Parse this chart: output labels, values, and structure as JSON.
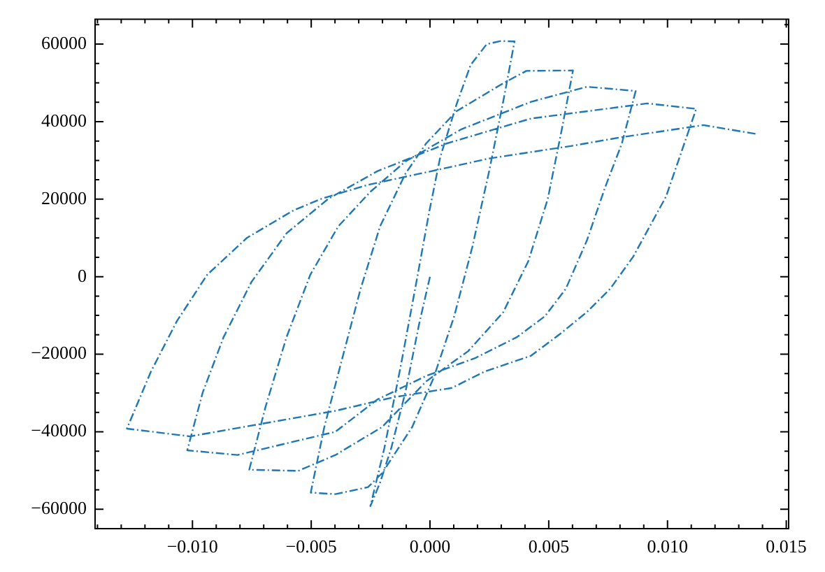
{
  "chart_data": {
    "type": "line",
    "line_style": "dashdot",
    "marker": "none",
    "grid": false,
    "legend": false,
    "x": [
      0,
      -0.00045,
      -0.00104,
      -0.00163,
      -0.0021,
      -0.00251,
      -0.00192,
      -0.00122,
      -0.00057,
      -4e-05,
      0.00043,
      0.00112,
      0.00171,
      0.00239,
      0.00298,
      0.00356,
      0.00308,
      0.00249,
      0.00178,
      0.00102,
      0.00014,
      -0.00075,
      -0.00202,
      -0.00261,
      -0.00398,
      -0.00502,
      -0.00445,
      -0.00369,
      -0.00292,
      -0.0021,
      -0.00104,
      -0.00016,
      0.00112,
      0.00308,
      0.00406,
      0.00602,
      0.00555,
      0.00496,
      0.00414,
      0.00308,
      0.00161,
      -0.00016,
      -0.00202,
      -0.00398,
      -0.00555,
      -0.00761,
      -0.00692,
      -0.00604,
      -0.00504,
      -0.00386,
      -0.00251,
      -0.00104,
      0.00131,
      0.00425,
      0.00661,
      0.00866,
      0.00808,
      0.00737,
      0.00661,
      0.00572,
      0.00484,
      0.00366,
      0.0019,
      -0.00016,
      -0.00222,
      -0.00398,
      -0.0081,
      -0.01022,
      -0.00957,
      -0.00869,
      -0.00751,
      -0.00604,
      -0.00428,
      -0.00222,
      0.00072,
      0.00425,
      0.00915,
      0.01121,
      0.00994,
      0.00856,
      0.00759,
      0.00661,
      0.00543,
      0.00425,
      0.00229,
      0.00092,
      -0.00153,
      -0.00398,
      -0.0101,
      -0.01276,
      -0.01175,
      -0.01065,
      -0.00938,
      -0.00771,
      -0.00575,
      -0.00457,
      -0.00261,
      0.00072,
      0.00249,
      0.00602,
      0.00798,
      0.01151,
      0.01376
    ],
    "series": [
      {
        "color": "#1f77b4",
        "values": [
          0,
          -12000,
          -29900,
          -44200,
          -53100,
          -59200,
          -44200,
          -22700,
          -1300,
          16500,
          30800,
          44500,
          54600,
          60000,
          60800,
          60700,
          45100,
          27200,
          7600,
          -10200,
          -26300,
          -38800,
          -50700,
          -54300,
          -56100,
          -55700,
          -38800,
          -21000,
          -3100,
          13000,
          26500,
          34400,
          42700,
          49900,
          53100,
          53200,
          38000,
          20100,
          4000,
          -9200,
          -19200,
          -27000,
          -38800,
          -46000,
          -50100,
          -49800,
          -33500,
          -15600,
          500,
          13000,
          21900,
          29700,
          38000,
          45100,
          49000,
          47900,
          34400,
          23000,
          9400,
          -3100,
          -10200,
          -15600,
          -21000,
          -25600,
          -31700,
          -40000,
          -46000,
          -44800,
          -29900,
          -15600,
          -1300,
          11200,
          20100,
          27200,
          34400,
          40800,
          44700,
          43300,
          20700,
          5200,
          -3100,
          -9100,
          -15000,
          -20400,
          -24500,
          -28700,
          -31100,
          -34600,
          -41200,
          -39200,
          -24500,
          -11400,
          500,
          10000,
          17100,
          20100,
          23700,
          28100,
          30500,
          33800,
          35900,
          39100,
          36800
        ]
      }
    ],
    "xlim": [
      -0.0141,
      0.0151
    ],
    "xticks": [
      {
        "value": -0.014,
        "label": null
      },
      {
        "value": -0.013,
        "label": null
      },
      {
        "value": -0.012,
        "label": null
      },
      {
        "value": -0.011,
        "label": null
      },
      {
        "value": -0.01,
        "label": "−0.010"
      },
      {
        "value": -0.009,
        "label": null
      },
      {
        "value": -0.008,
        "label": null
      },
      {
        "value": -0.007,
        "label": null
      },
      {
        "value": -0.006,
        "label": null
      },
      {
        "value": -0.005,
        "label": "−0.005"
      },
      {
        "value": -0.004,
        "label": null
      },
      {
        "value": -0.003,
        "label": null
      },
      {
        "value": -0.002,
        "label": null
      },
      {
        "value": -0.001,
        "label": null
      },
      {
        "value": 0,
        "label": "0.000"
      },
      {
        "value": 0.001,
        "label": null
      },
      {
        "value": 0.002,
        "label": null
      },
      {
        "value": 0.003,
        "label": null
      },
      {
        "value": 0.004,
        "label": null
      },
      {
        "value": 0.005,
        "label": "0.005"
      },
      {
        "value": 0.006,
        "label": null
      },
      {
        "value": 0.007,
        "label": null
      },
      {
        "value": 0.008,
        "label": null
      },
      {
        "value": 0.009,
        "label": null
      },
      {
        "value": 0.01,
        "label": "0.010"
      },
      {
        "value": 0.011,
        "label": null
      },
      {
        "value": 0.012,
        "label": null
      },
      {
        "value": 0.013,
        "label": null
      },
      {
        "value": 0.014,
        "label": null
      },
      {
        "value": 0.015,
        "label": "0.015"
      }
    ],
    "ylim": [
      -65000,
      66400
    ],
    "yticks": [
      {
        "value": -65000,
        "label": null
      },
      {
        "value": -60000,
        "label": "−60000"
      },
      {
        "value": -55000,
        "label": null
      },
      {
        "value": -50000,
        "label": null
      },
      {
        "value": -45000,
        "label": null
      },
      {
        "value": -40000,
        "label": "−40000"
      },
      {
        "value": -35000,
        "label": null
      },
      {
        "value": -30000,
        "label": null
      },
      {
        "value": -25000,
        "label": null
      },
      {
        "value": -20000,
        "label": "−20000"
      },
      {
        "value": -15000,
        "label": null
      },
      {
        "value": -10000,
        "label": null
      },
      {
        "value": -5000,
        "label": null
      },
      {
        "value": 0,
        "label": "0"
      },
      {
        "value": 5000,
        "label": null
      },
      {
        "value": 10000,
        "label": null
      },
      {
        "value": 15000,
        "label": null
      },
      {
        "value": 20000,
        "label": "20000"
      },
      {
        "value": 25000,
        "label": null
      },
      {
        "value": 30000,
        "label": null
      },
      {
        "value": 35000,
        "label": null
      },
      {
        "value": 40000,
        "label": "40000"
      },
      {
        "value": 45000,
        "label": null
      },
      {
        "value": 50000,
        "label": null
      },
      {
        "value": 55000,
        "label": null
      },
      {
        "value": 60000,
        "label": "60000"
      },
      {
        "value": 65000,
        "label": null
      }
    ]
  }
}
